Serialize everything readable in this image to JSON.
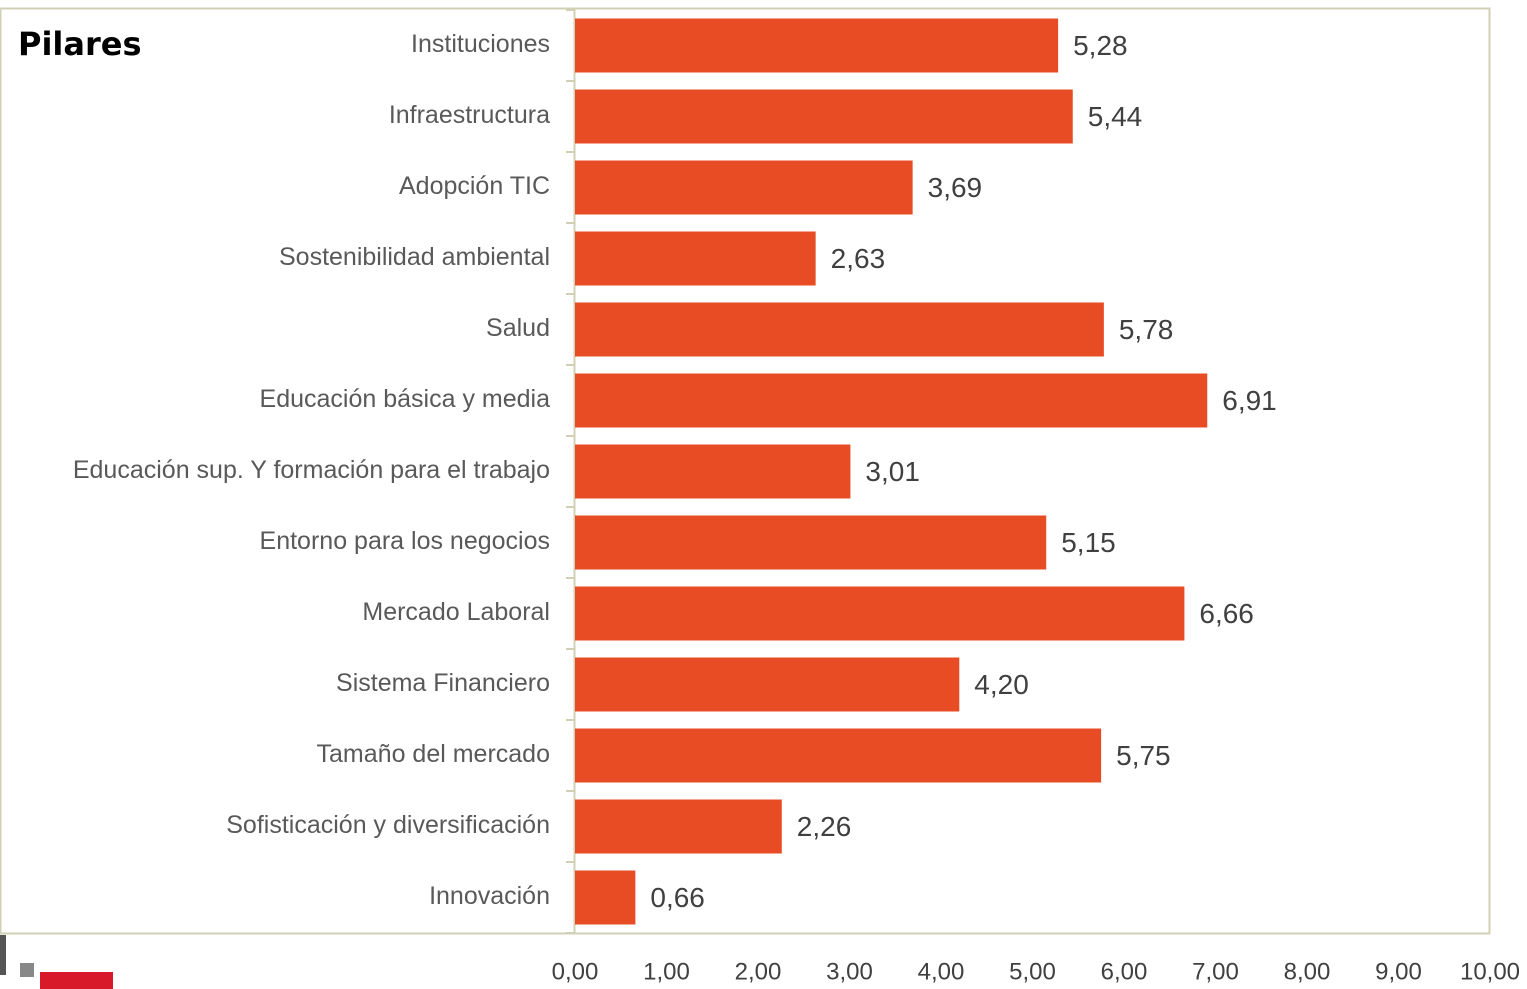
{
  "chart_data": {
    "type": "bar",
    "orientation": "horizontal",
    "title": "Pilares",
    "categories": [
      "Instituciones",
      "Infraestructura",
      "Adopción TIC",
      "Sostenibilidad ambiental",
      "Salud",
      "Educación básica y media",
      "Educación sup. Y formación para el trabajo",
      "Entorno para los negocios",
      "Mercado Laboral",
      "Sistema Financiero",
      "Tamaño  del mercado",
      "Sofisticación y diversificación",
      "Innovación"
    ],
    "values": [
      5.28,
      5.44,
      3.69,
      2.63,
      5.78,
      6.91,
      3.01,
      5.15,
      6.66,
      4.2,
      5.75,
      2.26,
      0.66
    ],
    "value_labels": [
      "5,28",
      "5,44",
      "3,69",
      "2,63",
      "5,78",
      "6,91",
      "3,01",
      "5,15",
      "6,66",
      "4,20",
      "5,75",
      "2,26",
      "0,66"
    ],
    "color": "#e84c25",
    "xlim": [
      0,
      10
    ],
    "xticks": [
      {
        "value": 0,
        "label": "0,00"
      },
      {
        "value": 1,
        "label": "1,00"
      },
      {
        "value": 2,
        "label": "2,00"
      },
      {
        "value": 3,
        "label": "3,00"
      },
      {
        "value": 4,
        "label": "4,00"
      },
      {
        "value": 5,
        "label": "5,00"
      },
      {
        "value": 6,
        "label": "6,00"
      },
      {
        "value": 7,
        "label": "7,00"
      },
      {
        "value": 8,
        "label": "8,00"
      },
      {
        "value": 9,
        "label": "9,00"
      },
      {
        "value": 10,
        "label": "10,00"
      }
    ],
    "grid": false
  }
}
